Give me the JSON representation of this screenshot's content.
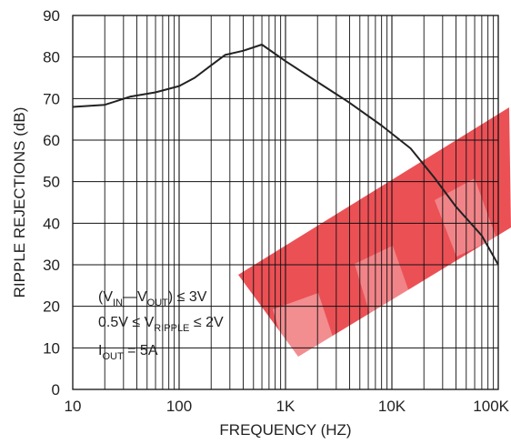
{
  "chart_data": {
    "type": "line",
    "xscale": "log",
    "xlim": [
      10,
      100000
    ],
    "ylim": [
      0,
      90
    ],
    "grid": true,
    "xlabel": "FREQUENCY (HZ)",
    "ylabel": "RIPPLE REJECTIONS (dB)",
    "x_ticks": [
      10,
      100,
      1000,
      10000,
      100000
    ],
    "x_tick_labels": [
      "10",
      "100",
      "1K",
      "10K",
      "100K"
    ],
    "y_ticks": [
      0,
      10,
      20,
      30,
      40,
      50,
      60,
      70,
      80,
      90
    ],
    "y_tick_labels": [
      "0",
      "10",
      "20",
      "30",
      "40",
      "50",
      "60",
      "70",
      "80",
      "90"
    ],
    "series": [
      {
        "x": [
          10,
          20,
          35,
          60,
          100,
          140,
          200,
          270,
          400,
          600,
          1000,
          2000,
          4000,
          8000,
          15000,
          25000,
          40000,
          70000,
          100000
        ],
        "y": [
          68,
          68.5,
          70.5,
          71.5,
          73,
          75,
          78,
          80.5,
          81.5,
          83,
          79,
          74,
          69,
          63.5,
          58,
          51,
          44,
          37,
          30
        ],
        "color": "#222222"
      }
    ],
    "annotations": [
      {
        "parts": [
          [
            "(V",
            ""
          ],
          [
            "IN",
            "sub"
          ],
          [
            "—V",
            ""
          ],
          [
            "OUT",
            "sub"
          ],
          [
            ") ≤ 3V",
            ""
          ]
        ]
      },
      {
        "parts": [
          [
            "0.5V ≤ V",
            ""
          ],
          [
            "RIPPLE",
            "sub"
          ],
          [
            " ≤ 2V",
            ""
          ]
        ]
      },
      {
        "parts": [
          [
            "I",
            ""
          ],
          [
            "OUT",
            "sub"
          ],
          [
            " = 5A",
            ""
          ]
        ]
      }
    ],
    "watermark": {
      "color": "#e8383d"
    }
  }
}
